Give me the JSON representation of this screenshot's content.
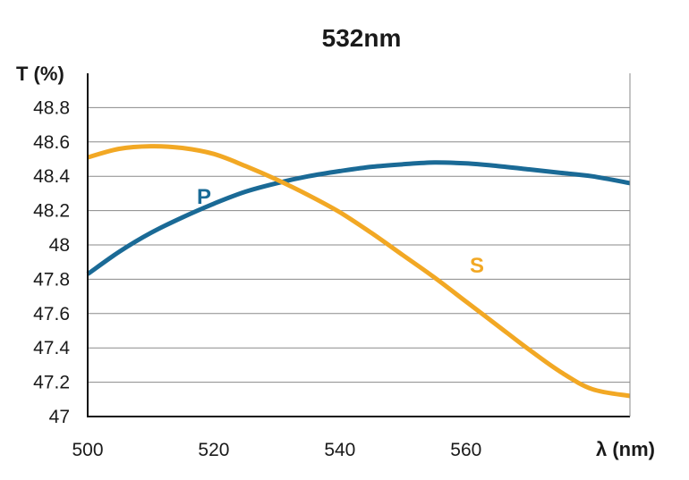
{
  "chart_data": {
    "type": "line",
    "title": "532nm",
    "ylabel": "T (%)",
    "xlabel": "λ (nm)",
    "xlim": [
      500,
      586
    ],
    "ylim": [
      47,
      49
    ],
    "xticks": [
      500,
      520,
      540,
      560
    ],
    "xtick_labels": [
      "500",
      "520",
      "540",
      "560"
    ],
    "yticks": [
      47,
      47.2,
      47.4,
      47.6,
      47.8,
      48,
      48.2,
      48.4,
      48.6,
      48.8
    ],
    "ytick_labels": [
      "47",
      "47.2",
      "47.4",
      "47.6",
      "47.8",
      "48",
      "48.2",
      "48.4",
      "48.6",
      "48.8"
    ],
    "grid": true,
    "series": [
      {
        "name": "P",
        "color": "#1a6a96",
        "x": [
          500,
          505,
          510,
          515,
          520,
          525,
          530,
          535,
          540,
          545,
          550,
          555,
          560,
          565,
          570,
          575,
          580,
          586
        ],
        "y": [
          47.83,
          47.96,
          48.07,
          48.16,
          48.24,
          48.31,
          48.36,
          48.4,
          48.43,
          48.455,
          48.47,
          48.48,
          48.475,
          48.46,
          48.44,
          48.42,
          48.4,
          48.36
        ]
      },
      {
        "name": "S",
        "color": "#f2a824",
        "x": [
          500,
          505,
          510,
          515,
          520,
          525,
          530,
          535,
          540,
          545,
          550,
          555,
          560,
          565,
          570,
          575,
          580,
          586
        ],
        "y": [
          48.51,
          48.56,
          48.575,
          48.565,
          48.53,
          48.46,
          48.38,
          48.29,
          48.19,
          48.07,
          47.94,
          47.81,
          47.67,
          47.53,
          47.39,
          47.26,
          47.16,
          47.12
        ]
      }
    ]
  }
}
